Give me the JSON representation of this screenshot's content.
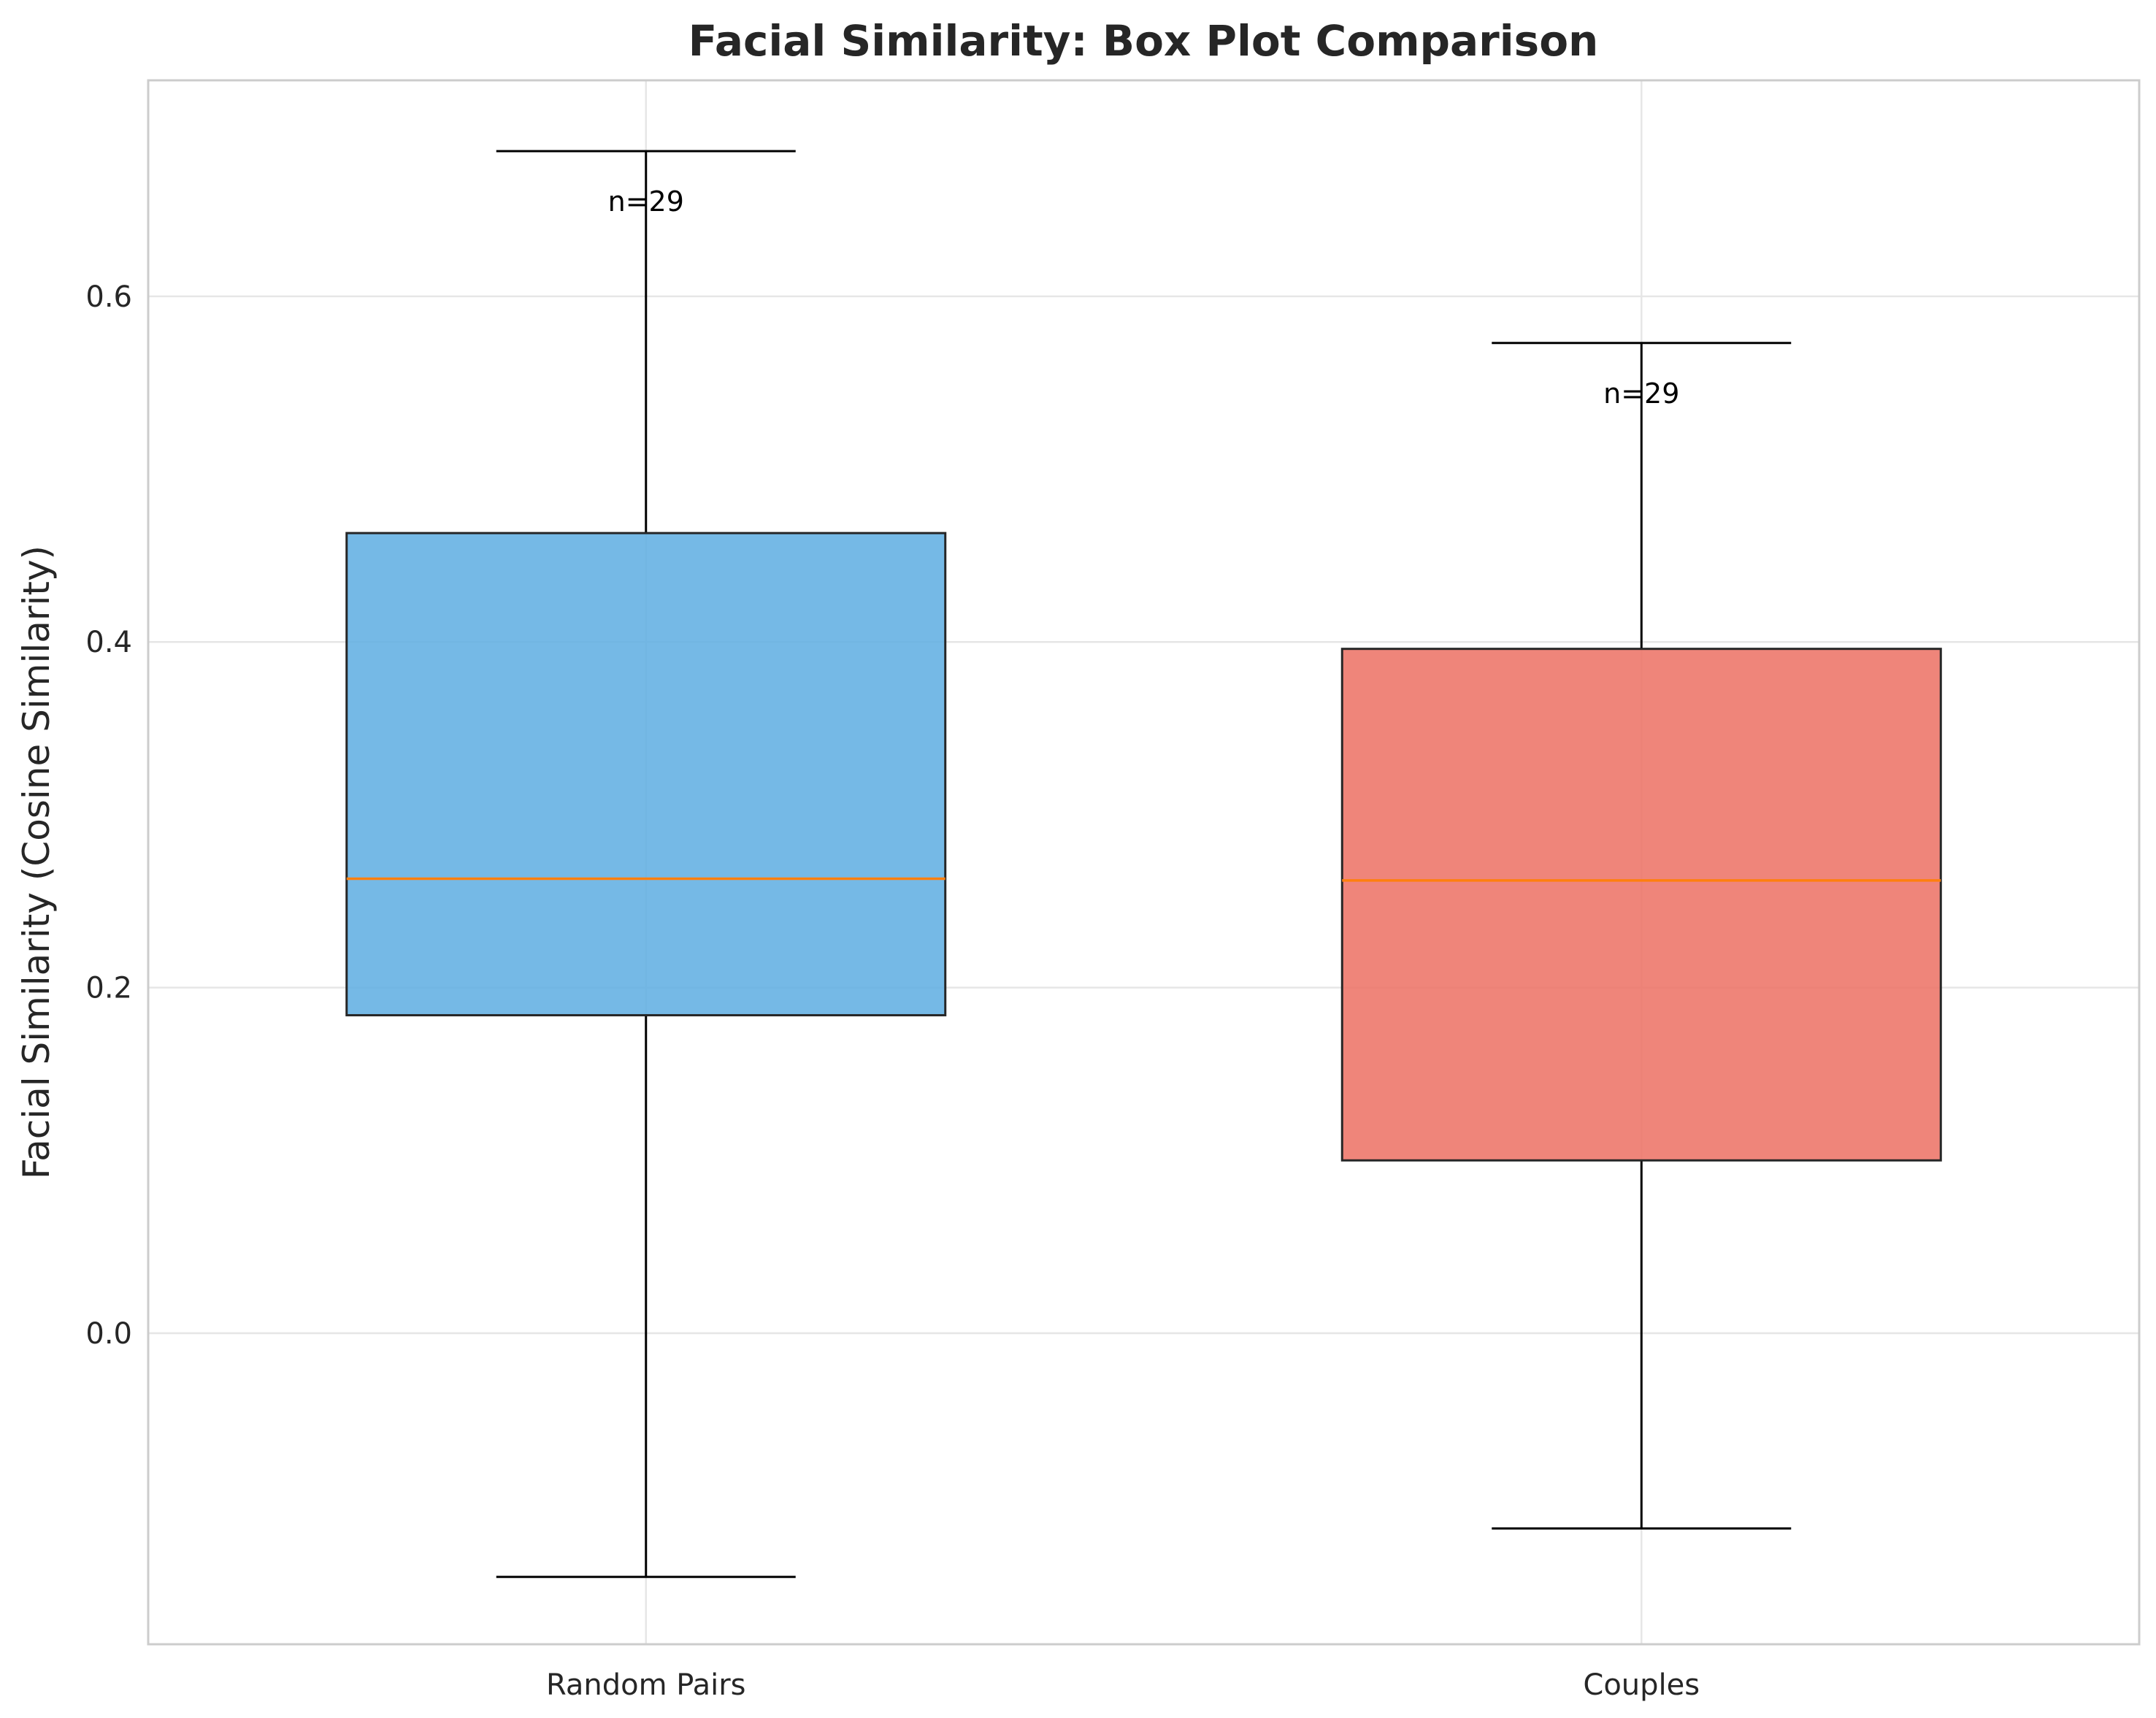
{
  "chart_data": {
    "type": "box",
    "title": "Facial Similarity: Box Plot Comparison",
    "xlabel": "",
    "ylabel": "Facial Similarity (Cosine Similarity)",
    "ylim": [
      -0.18,
      0.725
    ],
    "yticks": [
      0.0,
      0.2,
      0.4,
      0.6
    ],
    "ytick_labels": [
      "0.0",
      "0.2",
      "0.4",
      "0.6"
    ],
    "grid": true,
    "categories": [
      "Random Pairs",
      "Couples"
    ],
    "series": [
      {
        "name": "Random Pairs",
        "whisker_low": -0.141,
        "q1": 0.184,
        "median": 0.263,
        "q3": 0.463,
        "whisker_high": 0.684,
        "n_label": "n=29",
        "color": "#5DADE2"
      },
      {
        "name": "Couples",
        "whisker_low": -0.113,
        "q1": 0.1,
        "median": 0.262,
        "q3": 0.396,
        "whisker_high": 0.573,
        "n_label": "n=29",
        "color": "#EC7063"
      }
    ],
    "median_color": "#FF7F0E"
  }
}
